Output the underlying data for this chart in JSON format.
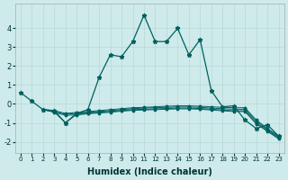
{
  "xlabel": "Humidex (Indice chaleur)",
  "background_color": "#ceeaea",
  "grid_color": "#b8d8d8",
  "line_color": "#006060",
  "xlim": [
    -0.5,
    23.5
  ],
  "ylim": [
    -2.6,
    5.3
  ],
  "xticks": [
    0,
    1,
    2,
    3,
    4,
    5,
    6,
    7,
    8,
    9,
    10,
    11,
    12,
    13,
    14,
    15,
    16,
    17,
    18,
    19,
    20,
    21,
    22,
    23
  ],
  "yticks": [
    -2,
    -1,
    0,
    1,
    2,
    3,
    4
  ],
  "line1_x": [
    0,
    1,
    2,
    3,
    4,
    5,
    6,
    7,
    8,
    9,
    10,
    11,
    12,
    13,
    14,
    15,
    16,
    17,
    18,
    19,
    20,
    21,
    22,
    23
  ],
  "line1_y": [
    0.6,
    0.15,
    -0.3,
    -0.35,
    -1.0,
    -0.5,
    -0.3,
    1.4,
    2.6,
    2.5,
    3.3,
    4.7,
    3.3,
    3.3,
    4.0,
    2.6,
    3.4,
    0.7,
    -0.15,
    -0.1,
    -0.85,
    -1.3,
    -1.1,
    -1.7
  ],
  "line2_x": [
    2,
    3,
    4,
    5,
    6,
    7,
    8,
    9,
    10,
    11,
    12,
    13,
    14,
    15,
    16,
    17,
    18,
    19,
    20,
    21,
    22,
    23
  ],
  "line2_y": [
    -0.3,
    -0.35,
    -0.5,
    -0.45,
    -0.4,
    -0.35,
    -0.3,
    -0.25,
    -0.2,
    -0.18,
    -0.15,
    -0.12,
    -0.1,
    -0.1,
    -0.12,
    -0.15,
    -0.18,
    -0.2,
    -0.2,
    -0.85,
    -1.3,
    -1.7
  ],
  "line3_x": [
    2,
    3,
    4,
    5,
    6,
    7,
    8,
    9,
    10,
    11,
    12,
    13,
    14,
    15,
    16,
    17,
    18,
    19,
    20,
    21,
    22,
    23
  ],
  "line3_y": [
    -0.3,
    -0.4,
    -0.55,
    -0.5,
    -0.45,
    -0.4,
    -0.35,
    -0.3,
    -0.25,
    -0.22,
    -0.2,
    -0.18,
    -0.16,
    -0.16,
    -0.18,
    -0.22,
    -0.25,
    -0.28,
    -0.28,
    -0.9,
    -1.35,
    -1.75
  ],
  "line4_x": [
    2,
    3,
    4,
    5,
    6,
    7,
    8,
    9,
    10,
    11,
    12,
    13,
    14,
    15,
    16,
    17,
    18,
    19,
    20,
    21,
    22,
    23
  ],
  "line4_y": [
    -0.3,
    -0.42,
    -1.0,
    -0.55,
    -0.48,
    -0.44,
    -0.4,
    -0.35,
    -0.3,
    -0.28,
    -0.26,
    -0.24,
    -0.22,
    -0.22,
    -0.24,
    -0.28,
    -0.32,
    -0.36,
    -0.36,
    -1.0,
    -1.4,
    -1.8
  ],
  "line5_x": [
    2,
    3,
    4,
    5,
    6,
    7,
    8,
    9,
    10,
    11,
    12,
    13,
    14,
    15,
    16,
    17,
    18,
    19,
    20,
    21,
    22,
    23
  ],
  "line5_y": [
    -0.3,
    -0.44,
    -0.6,
    -0.58,
    -0.52,
    -0.48,
    -0.44,
    -0.38,
    -0.34,
    -0.32,
    -0.3,
    -0.28,
    -0.26,
    -0.26,
    -0.28,
    -0.32,
    -0.36,
    -0.4,
    -0.4,
    -1.05,
    -1.45,
    -1.85
  ]
}
